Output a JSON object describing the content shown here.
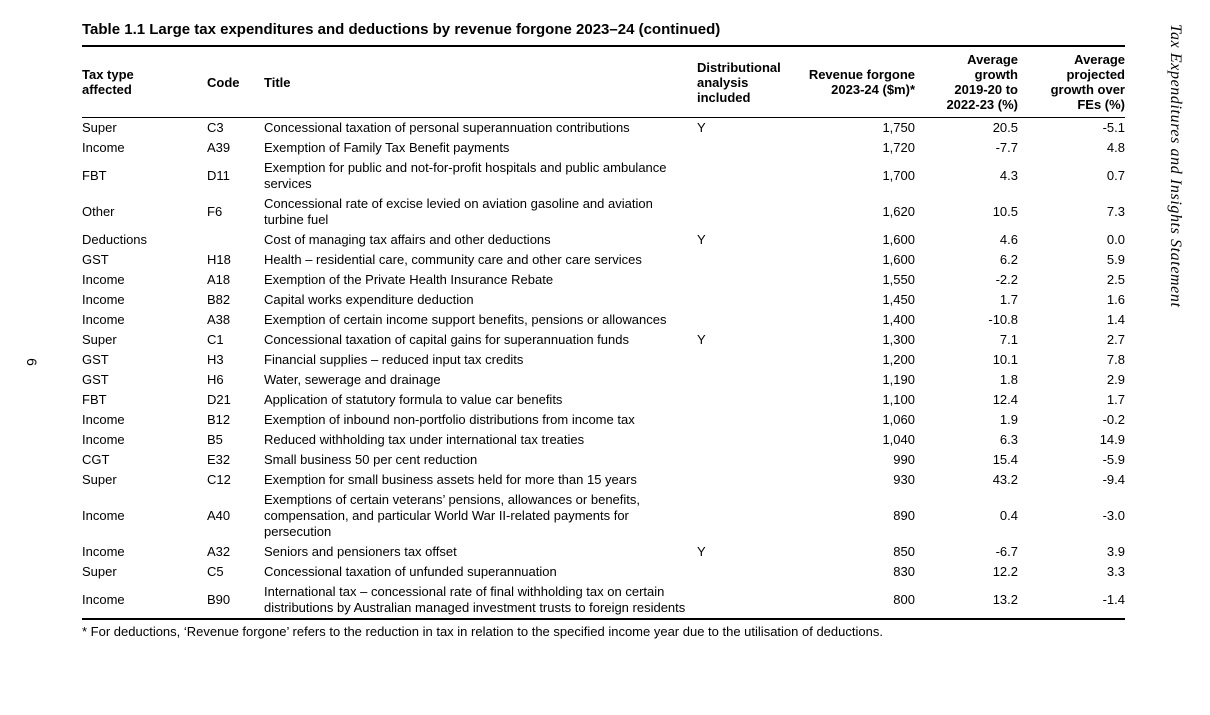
{
  "page": {
    "number": "6",
    "sidebar_title": "Tax Expenditures and Insights Statement"
  },
  "table": {
    "title": "Table 1.1 Large tax expenditures and deductions by revenue forgone 2023–24 (continued)",
    "columns": [
      "Tax type\naffected",
      "Code",
      "Title",
      "Distributional\nanalysis\nincluded",
      "Revenue forgone\n2023-24 ($m)*",
      "Average\ngrowth\n2019-20 to\n2022-23 (%)",
      "Average\nprojected\ngrowth over\nFEs (%)"
    ],
    "rows": [
      [
        "Super",
        "C3",
        "Concessional taxation of personal superannuation contributions",
        "Y",
        "1,750",
        "20.5",
        "-5.1"
      ],
      [
        "Income",
        "A39",
        "Exemption of Family Tax Benefit payments",
        "",
        "1,720",
        "-7.7",
        "4.8"
      ],
      [
        "FBT",
        "D11",
        "Exemption for public and not-for-profit hospitals and public ambulance services",
        "",
        "1,700",
        "4.3",
        "0.7"
      ],
      [
        "Other",
        "F6",
        "Concessional rate of excise levied on aviation gasoline and aviation turbine fuel",
        "",
        "1,620",
        "10.5",
        "7.3"
      ],
      [
        "Deductions",
        "",
        "Cost of managing tax affairs and other deductions",
        "Y",
        "1,600",
        "4.6",
        "0.0"
      ],
      [
        "GST",
        "H18",
        "Health – residential care, community care and other care services",
        "",
        "1,600",
        "6.2",
        "5.9"
      ],
      [
        "Income",
        "A18",
        "Exemption of the Private Health Insurance Rebate",
        "",
        "1,550",
        "-2.2",
        "2.5"
      ],
      [
        "Income",
        "B82",
        "Capital works expenditure deduction",
        "",
        "1,450",
        "1.7",
        "1.6"
      ],
      [
        "Income",
        "A38",
        "Exemption of certain income support benefits, pensions or allowances",
        "",
        "1,400",
        "-10.8",
        "1.4"
      ],
      [
        "Super",
        "C1",
        "Concessional taxation of capital gains for superannuation funds",
        "Y",
        "1,300",
        "7.1",
        "2.7"
      ],
      [
        "GST",
        "H3",
        "Financial supplies – reduced input tax credits",
        "",
        "1,200",
        "10.1",
        "7.8"
      ],
      [
        "GST",
        "H6",
        "Water, sewerage and drainage",
        "",
        "1,190",
        "1.8",
        "2.9"
      ],
      [
        "FBT",
        "D21",
        "Application of statutory formula to value car benefits",
        "",
        "1,100",
        "12.4",
        "1.7"
      ],
      [
        "Income",
        "B12",
        "Exemption of inbound non-portfolio distributions from income tax",
        "",
        "1,060",
        "1.9",
        "-0.2"
      ],
      [
        "Income",
        "B5",
        "Reduced withholding tax under international tax treaties",
        "",
        "1,040",
        "6.3",
        "14.9"
      ],
      [
        "CGT",
        "E32",
        "Small business 50 per cent reduction",
        "",
        "990",
        "15.4",
        "-5.9"
      ],
      [
        "Super",
        "C12",
        "Exemption for small business assets held for more than 15 years",
        "",
        "930",
        "43.2",
        "-9.4"
      ],
      [
        "Income",
        "A40",
        "Exemptions of certain veterans’ pensions, allowances or benefits, compensation, and particular World War II-related payments for persecution",
        "",
        "890",
        "0.4",
        "-3.0"
      ],
      [
        "Income",
        "A32",
        "Seniors and pensioners tax offset",
        "Y",
        "850",
        "-6.7",
        "3.9"
      ],
      [
        "Super",
        "C5",
        "Concessional taxation of unfunded superannuation",
        "",
        "830",
        "12.2",
        "3.3"
      ],
      [
        "Income",
        "B90",
        "International tax – concessional rate of final withholding tax on certain distributions by Australian managed investment trusts to foreign residents",
        "",
        "800",
        "13.2",
        "-1.4"
      ]
    ],
    "footnote": "* For deductions, ‘Revenue forgone’ refers to the reduction in tax in relation to the specified income year due to the utilisation of deductions."
  }
}
